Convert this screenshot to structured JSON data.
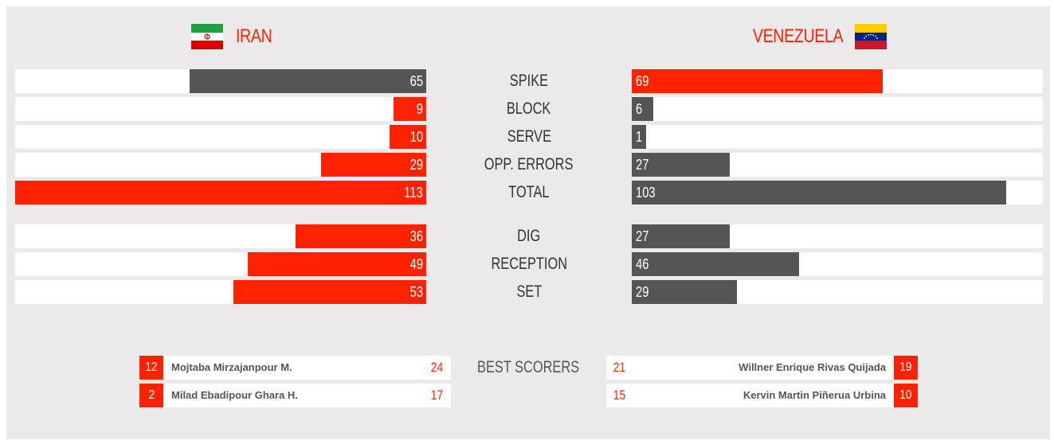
{
  "colors": {
    "accent": "#ff2200",
    "dark": "#555555",
    "panel": "#ebe9e9",
    "row": "#ffffff"
  },
  "teams": {
    "home": {
      "name": "IRAN",
      "flag_icon": "iran-flag-icon"
    },
    "away": {
      "name": "VENEZUELA",
      "flag_icon": "venezuela-flag-icon"
    }
  },
  "chart_data": {
    "type": "bar",
    "orientation": "horizontal-diverging",
    "series": [
      {
        "name": "IRAN",
        "values": [
          65,
          9,
          10,
          29,
          113,
          36,
          49,
          53
        ]
      },
      {
        "name": "VENEZUELA",
        "values": [
          69,
          6,
          1,
          27,
          103,
          27,
          46,
          29
        ]
      }
    ],
    "categories": [
      "SPIKE",
      "BLOCK",
      "SERVE",
      "OPP. ERRORS",
      "TOTAL",
      "DIG",
      "RECEPTION",
      "SET"
    ],
    "groups": [
      [
        "SPIKE",
        "BLOCK",
        "SERVE",
        "OPP. ERRORS",
        "TOTAL"
      ],
      [
        "DIG",
        "RECEPTION",
        "SET"
      ]
    ],
    "xlim": [
      0,
      113
    ],
    "bar_colors": {
      "IRAN": [
        "dark",
        "accent",
        "accent",
        "accent",
        "accent",
        "accent",
        "accent",
        "accent"
      ],
      "VENEZUELA": [
        "accent",
        "dark",
        "dark",
        "dark",
        "dark",
        "dark",
        "dark",
        "dark"
      ]
    }
  },
  "best_scorers": {
    "label": "BEST SCORERS",
    "home": [
      {
        "number": "12",
        "name": "Mojtaba Mirzajanpour M.",
        "points": "24"
      },
      {
        "number": "2",
        "name": "Milad Ebadipour Ghara H.",
        "points": "17"
      }
    ],
    "away": [
      {
        "number": "19",
        "name": "Willner Enrique Rivas Quijada",
        "points": "21"
      },
      {
        "number": "10",
        "name": "Kervin Martin Piñerua Urbina",
        "points": "15"
      }
    ]
  }
}
